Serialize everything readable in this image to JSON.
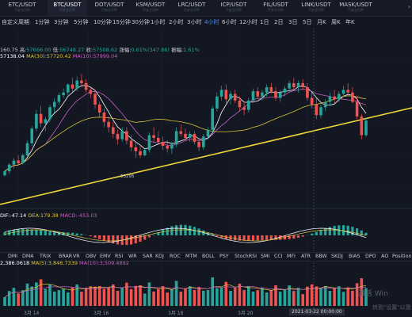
{
  "tabs": [
    {
      "symbol": "ETC/USDT",
      "sub": "币安全币种"
    },
    {
      "symbol": "BTC/USDT",
      "sub": "币安全币种"
    },
    {
      "symbol": "DOT/USDT",
      "sub": "币安全币种"
    },
    {
      "symbol": "KSM/USDT",
      "sub": "币安全币种"
    },
    {
      "symbol": "LRC/USDT",
      "sub": "币安全币种"
    },
    {
      "symbol": "ICP/USDT",
      "sub": "币安全币种"
    },
    {
      "symbol": "FIL/USDT",
      "sub": "币安全币种"
    },
    {
      "symbol": "LINK/USDT",
      "sub": "币安全币种"
    },
    {
      "symbol": "MASK/USDT",
      "sub": "币安全币种"
    }
  ],
  "timeframes": [
    "自定义周期",
    "1分钟",
    "3分钟",
    "5分钟",
    "10分钟",
    "15分钟",
    "30分钟",
    "1小时",
    "2小时",
    "3小时",
    "4小时",
    "6小时",
    "12小时",
    "1日",
    "2日",
    "3日",
    "5日",
    "月K",
    "周K",
    "年K"
  ],
  "ohlc": {
    "c_label": "160.75",
    "h_prefix": "高:",
    "h": "57666.00",
    "l_prefix": "低:",
    "l": "56748.27",
    "close_prefix": "收:",
    "close": "57508.62",
    "chg_prefix": "涨幅:",
    "chg": "0.61%(347.86)",
    "amp_prefix": "振幅:",
    "amp": "1.61%"
  },
  "ma": {
    "ma5": "57138.04",
    "ma30_label": "MA(30):",
    "ma30": "57720.42",
    "ma10_label": "MA(10):",
    "ma10": "57999.04"
  },
  "macd": {
    "dif": "DIF:-47.14",
    "dea": "DEA:179.38",
    "macd": "MACD:-453.03"
  },
  "vol": {
    "v1": "2,386.0618",
    "ma5": "MA(5):3,846.7339",
    "ma10": "MA(10):3,509.4892"
  },
  "indicators": [
    "DMI",
    "DMA",
    "TRIX",
    "BRAR",
    "VR",
    "OBV",
    "EMV",
    "RSI",
    "WR",
    "SAR",
    "KDJ",
    "ROC",
    "MTM",
    "BOLL",
    "PSY",
    "StochRSI",
    "SMI",
    "CCI",
    "MFI",
    "ATR",
    "BBW",
    "SKDJ",
    "BIAS",
    "DPO",
    "AO",
    "Position"
  ],
  "xaxis": [
    "3月 14",
    "3月 16",
    "3月 18",
    "3月 20"
  ],
  "crosshair_time": "2021-03-22 00:00:00",
  "low_marker": "53295",
  "watermark1": "激活 Win",
  "watermark2": "转到\"设置\"以激",
  "chart_data": {
    "type": "candlestick",
    "candles": [
      [
        52000,
        52350,
        51900,
        52300
      ],
      [
        52300,
        52900,
        52100,
        52800
      ],
      [
        52800,
        53300,
        52500,
        53100
      ],
      [
        53100,
        53500,
        52700,
        52900
      ],
      [
        52900,
        53600,
        52800,
        53500
      ],
      [
        53500,
        54600,
        53400,
        54400
      ],
      [
        54400,
        55700,
        54200,
        55500
      ],
      [
        55500,
        56900,
        55300,
        56600
      ],
      [
        56600,
        57200,
        55600,
        55900
      ],
      [
        55900,
        56400,
        55300,
        56200
      ],
      [
        56200,
        57300,
        56000,
        57100
      ],
      [
        57100,
        57800,
        56700,
        57500
      ],
      [
        57500,
        58200,
        57300,
        58000
      ],
      [
        58000,
        58500,
        57800,
        58200
      ],
      [
        58200,
        58900,
        58000,
        58800
      ],
      [
        58800,
        59300,
        58200,
        58500
      ],
      [
        58500,
        59400,
        58300,
        59100
      ],
      [
        59100,
        59600,
        58700,
        58900
      ],
      [
        58900,
        59200,
        58200,
        58400
      ],
      [
        58400,
        58600,
        57800,
        58100
      ],
      [
        58100,
        58400,
        57000,
        57300
      ],
      [
        57300,
        57500,
        56400,
        56700
      ],
      [
        56700,
        57000,
        55600,
        56000
      ],
      [
        56000,
        56400,
        55200,
        55600
      ],
      [
        55600,
        56000,
        54800,
        55100
      ],
      [
        55100,
        55400,
        54300,
        54700
      ],
      [
        54700,
        55600,
        54500,
        55300
      ],
      [
        55300,
        55600,
        54300,
        54600
      ],
      [
        54600,
        55000,
        53800,
        54100
      ],
      [
        54100,
        54500,
        53300,
        53800
      ],
      [
        53800,
        54200,
        53295,
        53500
      ],
      [
        53500,
        54000,
        53400,
        53900
      ],
      [
        53900,
        55200,
        53700,
        55000
      ],
      [
        55000,
        55600,
        54500,
        54800
      ],
      [
        54800,
        55300,
        54300,
        54500
      ],
      [
        54500,
        54900,
        53900,
        54200
      ],
      [
        54200,
        54600,
        53700,
        54000
      ],
      [
        54000,
        54500,
        53600,
        54300
      ],
      [
        54300,
        55600,
        54100,
        55300
      ],
      [
        55300,
        55800,
        54900,
        55100
      ],
      [
        55100,
        55500,
        54600,
        54800
      ],
      [
        54800,
        55300,
        54500,
        55100
      ],
      [
        55100,
        55300,
        54300,
        54500
      ],
      [
        54500,
        54800,
        53800,
        54100
      ],
      [
        54100,
        55100,
        53900,
        54900
      ],
      [
        54900,
        55600,
        54700,
        55400
      ],
      [
        55400,
        57200,
        55200,
        57000
      ],
      [
        57000,
        58200,
        56800,
        57900
      ],
      [
        57900,
        58700,
        57600,
        58400
      ],
      [
        58400,
        58800,
        57400,
        57700
      ],
      [
        57700,
        58300,
        57300,
        58100
      ],
      [
        58100,
        58400,
        57400,
        57600
      ],
      [
        57600,
        57900,
        56800,
        57100
      ],
      [
        57100,
        57500,
        56500,
        56900
      ],
      [
        56900,
        57800,
        56700,
        57600
      ],
      [
        57600,
        58500,
        57400,
        58300
      ],
      [
        58300,
        58600,
        57700,
        57900
      ],
      [
        57900,
        58400,
        57600,
        58200
      ],
      [
        58200,
        58800,
        57900,
        58600
      ],
      [
        58600,
        58900,
        58100,
        58300
      ],
      [
        58300,
        58600,
        57600,
        57800
      ],
      [
        57800,
        58400,
        57500,
        58200
      ],
      [
        58200,
        58700,
        57900,
        58500
      ],
      [
        58500,
        59100,
        58200,
        58900
      ],
      [
        58900,
        59300,
        58400,
        58600
      ],
      [
        58600,
        59100,
        58200,
        58900
      ],
      [
        58900,
        59200,
        58400,
        58600
      ],
      [
        58600,
        58900,
        57600,
        57800
      ],
      [
        57800,
        58200,
        57000,
        57300
      ],
      [
        57300,
        57800,
        56200,
        56500
      ],
      [
        56500,
        57300,
        56300,
        57100
      ],
      [
        57100,
        57700,
        56800,
        57500
      ],
      [
        57500,
        58200,
        57200,
        57900
      ],
      [
        57900,
        58400,
        57400,
        57700
      ],
      [
        57700,
        58300,
        57500,
        58100
      ],
      [
        58100,
        58700,
        57900,
        58400
      ],
      [
        58400,
        58900,
        58000,
        58200
      ],
      [
        58200,
        58600,
        57400,
        57500
      ],
      [
        57500,
        57900,
        56200,
        56400
      ],
      [
        56400,
        56600,
        54700,
        55000
      ],
      [
        55000,
        56300,
        54900,
        56100
      ]
    ]
  }
}
